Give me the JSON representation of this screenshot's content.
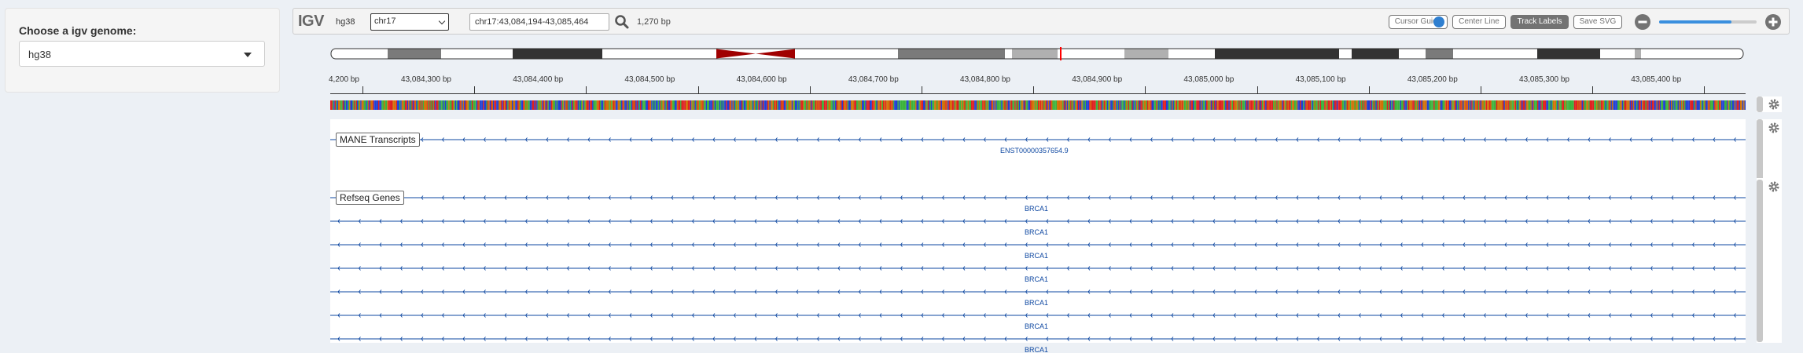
{
  "left_panel": {
    "label": "Choose a igv genome:",
    "selected": "hg38"
  },
  "navbar": {
    "logo": "IGV",
    "genome": "hg38",
    "chromosome": "chr17",
    "locus": "chr17:43,084,194-43,085,464",
    "bp_count": "1,270 bp",
    "buttons": {
      "cursor_guide": "Cursor Guide",
      "center_line": "Center Line",
      "track_labels": "Track Labels",
      "save_svg": "Save SVG"
    },
    "zoom_level": 0.74
  },
  "ruler": {
    "ticks": [
      "43,084,300 bp",
      "43,084,400 bp",
      "43,084,500 bp",
      "43,084,600 bp",
      "43,084,700 bp",
      "43,084,800 bp",
      "43,084,900 bp",
      "43,085,000 bp",
      "43,085,100 bp",
      "43,085,200 bp",
      "43,085,300 bp",
      "43,085,400 bp"
    ],
    "left_partial": "4,200 bp"
  },
  "tracks": {
    "mane": {
      "label": "MANE Transcripts",
      "feature": "ENST00000357654.9"
    },
    "refseq": {
      "label": "Refseq Genes",
      "features": [
        "BRCA1",
        "BRCA1",
        "BRCA1",
        "BRCA1",
        "BRCA1",
        "BRCA1",
        "BRCA1"
      ]
    }
  },
  "colors": {
    "base_A": "#3bb33b",
    "base_C": "#1f3fd6",
    "base_G": "#d17105",
    "base_T": "#e02020",
    "feature": "#0d47a1",
    "ideogram_centromere": "#a00000",
    "current_region": "#ff0000"
  },
  "icons": {
    "search": "search-icon",
    "gear": "gear-icon",
    "zoom_in": "plus-circle-icon",
    "zoom_out": "minus-circle-icon",
    "dropdown": "chevron-down-icon"
  }
}
